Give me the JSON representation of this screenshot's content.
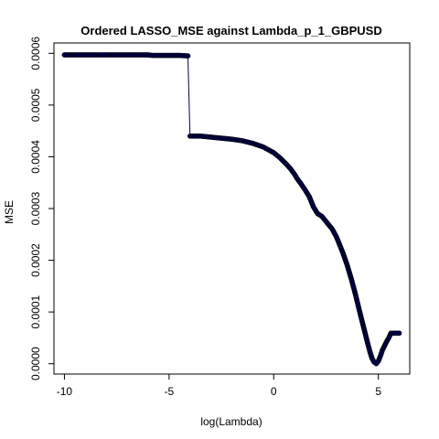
{
  "chart_data": {
    "type": "line",
    "title": "Ordered LASSO_MSE against Lambda_p_1_GBPUSD",
    "xlabel": "log(Lambda)",
    "ylabel": "MSE",
    "xlim": [
      -10.5,
      6.5
    ],
    "ylim": [
      -2e-05,
      0.00062
    ],
    "xticks": [
      -10,
      -5,
      0,
      5
    ],
    "xtick_labels": [
      "-10",
      "-5",
      "0",
      "5"
    ],
    "yticks": [
      0.0,
      0.0001,
      0.0002,
      0.0003,
      0.0004,
      0.0005,
      0.0006
    ],
    "ytick_labels": [
      "0.0000",
      "0.0001",
      "0.0002",
      "0.0003",
      "0.0004",
      "0.0005",
      "0.0006"
    ],
    "grid": false,
    "series": [
      {
        "color": "#00004d",
        "marker": "filled-circle",
        "x": [
          -10.0,
          -9.5,
          -9.0,
          -8.5,
          -8.0,
          -7.5,
          -7.0,
          -6.5,
          -6.0,
          -5.8,
          -5.5,
          -5.0,
          -4.5,
          -4.1,
          -4.0,
          -3.5,
          -3.0,
          -2.5,
          -2.0,
          -1.5,
          -1.0,
          -0.5,
          0.0,
          0.3,
          0.6,
          0.8,
          1.0,
          1.1,
          1.3,
          1.5,
          1.7,
          1.9,
          2.1,
          2.3,
          2.5,
          2.8,
          3.0,
          3.3,
          3.5,
          3.7,
          3.9,
          4.1,
          4.3,
          4.5,
          4.6,
          4.7,
          4.8,
          4.9,
          5.0,
          5.1,
          5.2,
          5.3,
          5.4,
          5.5,
          5.6,
          5.7,
          5.8,
          5.9,
          6.0
        ],
        "y": [
          0.000597,
          0.000597,
          0.000597,
          0.000597,
          0.000597,
          0.000597,
          0.000597,
          0.000597,
          0.000597,
          0.000596,
          0.000596,
          0.000596,
          0.000596,
          0.000595,
          0.00044,
          0.00044,
          0.000438,
          0.000436,
          0.000434,
          0.000431,
          0.000426,
          0.000419,
          0.000408,
          0.000398,
          0.000386,
          0.000377,
          0.000366,
          0.000359,
          0.000348,
          0.000336,
          0.000323,
          0.000303,
          0.00029,
          0.000285,
          0.000275,
          0.00026,
          0.000245,
          0.000215,
          0.000192,
          0.000165,
          0.000135,
          0.000102,
          7e-05,
          3.8e-05,
          2.3e-05,
          1e-05,
          3e-06,
          0.0,
          5e-06,
          1.5e-05,
          2.7e-05,
          3.5e-05,
          4.3e-05,
          5e-05,
          5.9e-05,
          5.9e-05,
          5.9e-05,
          5.9e-05,
          5.9e-05
        ]
      }
    ]
  }
}
